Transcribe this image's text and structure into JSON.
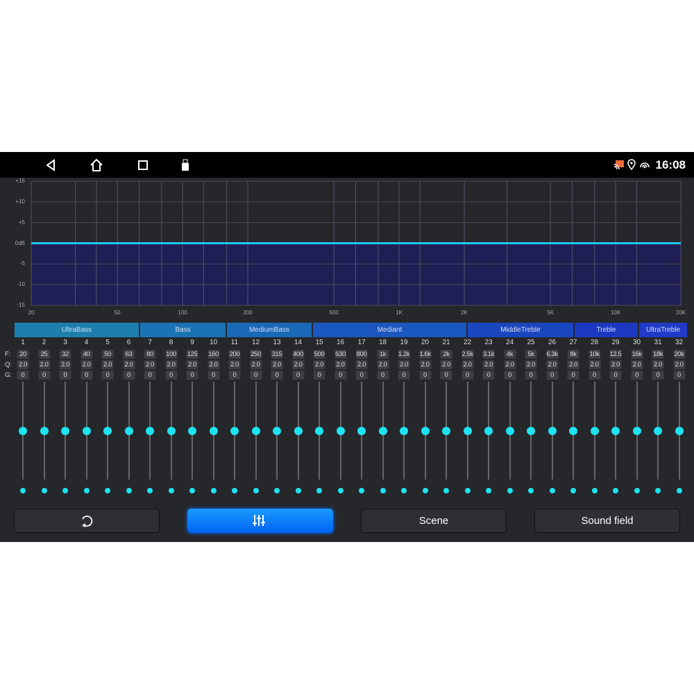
{
  "status_bar": {
    "time": "16:08",
    "icons": [
      "back-icon",
      "home-icon",
      "recents-icon",
      "usb-icon",
      "cast-icon",
      "location-icon",
      "hotspot-icon"
    ]
  },
  "chart_data": {
    "type": "line",
    "y_ticks": [
      "+15",
      "+10",
      "+5",
      "0dB",
      "-5",
      "-10",
      "-15"
    ],
    "x_ticks": [
      "20",
      "50",
      "100",
      "200",
      "500",
      "1K",
      "2K",
      "5K",
      "10K",
      "20K"
    ],
    "x_tick_values": [
      20,
      50,
      100,
      200,
      500,
      1000,
      2000,
      5000,
      10000,
      20000
    ],
    "ylim": [
      -15,
      15
    ],
    "xlim": [
      20,
      20000
    ],
    "x_scale": "log",
    "series": [
      {
        "x": [
          20,
          20000
        ],
        "y": [
          0,
          0
        ]
      }
    ],
    "line_color": "#1ec8ff",
    "fill_color": "#1f1f55",
    "grid": true
  },
  "bands": [
    "UltraBass",
    "Bass",
    "MediumBass",
    "Mediant",
    "MiddleTreble",
    "Treble",
    "UltraTreble"
  ],
  "row_labels": {
    "f": "F:",
    "q": "Q:",
    "g": "G:"
  },
  "channels": {
    "numbers": [
      "1",
      "2",
      "3",
      "4",
      "5",
      "6",
      "7",
      "8",
      "9",
      "10",
      "11",
      "12",
      "13",
      "14",
      "15",
      "16",
      "17",
      "18",
      "19",
      "20",
      "21",
      "22",
      "23",
      "24",
      "25",
      "26",
      "27",
      "28",
      "29",
      "30",
      "31",
      "32"
    ],
    "freq": [
      "20",
      "25",
      "32",
      "40",
      "50",
      "63",
      "80",
      "100",
      "125",
      "160",
      "200",
      "250",
      "315",
      "400",
      "500",
      "630",
      "800",
      "1k",
      "1.2k",
      "1.6k",
      "2k",
      "2.5k",
      "3.1k",
      "4k",
      "5k",
      "6.3k",
      "8k",
      "10k",
      "12.5",
      "16k",
      "18k",
      "20k"
    ],
    "q": "2.0",
    "g": "0",
    "slider_gain_db": 0
  },
  "buttons": {
    "reset_icon": "reset-icon",
    "eq_icon": "equalizer-icon",
    "scene": "Scene",
    "sound_field": "Sound field"
  },
  "colors": {
    "accent": "#1ee3f0",
    "active_button": "#0a7cff"
  }
}
